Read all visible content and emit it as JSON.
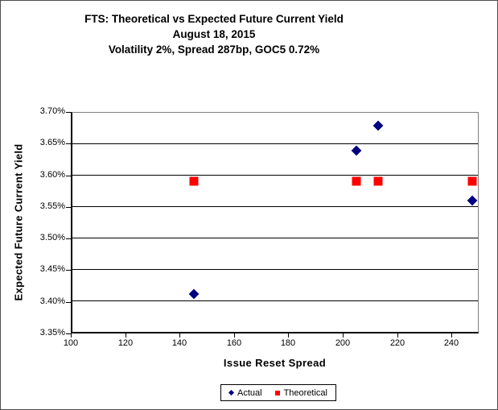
{
  "title": {
    "line1": "FTS: Theoretical vs Expected Future Current Yield",
    "line2": "August 18, 2015",
    "line3": "Volatility 2%, Spread 287bp, GOC5 0.72%"
  },
  "colors": {
    "actual": "#000080",
    "theoretical": "#ff0000",
    "gridline": "#000000",
    "plot_border": "#808080",
    "axis": "#000000",
    "background": "#ffffff"
  },
  "chart_data": {
    "type": "scatter",
    "title": "FTS: Theoretical vs Expected Future Current Yield",
    "subtitle": "August 18, 2015",
    "subtitle2": "Volatility 2%, Spread 287bp, GOC5 0.72%",
    "xlabel": "Issue Reset Spread",
    "ylabel": "Expected Future Current Yield",
    "xlim": [
      100,
      250
    ],
    "ylim": [
      3.35,
      3.7
    ],
    "xticks": [
      100,
      120,
      140,
      160,
      180,
      200,
      220,
      240
    ],
    "yticks": [
      3.35,
      3.4,
      3.45,
      3.5,
      3.55,
      3.6,
      3.65,
      3.7
    ],
    "ytick_suffix": "%",
    "grid": "horizontal",
    "legend_position": "bottom",
    "series": [
      {
        "name": "Actual",
        "marker": "diamond",
        "color": "#000080",
        "points": [
          [
            145,
            3.41
          ],
          [
            205,
            3.64
          ],
          [
            213,
            3.68
          ],
          [
            248,
            3.56
          ]
        ]
      },
      {
        "name": "Theoretical",
        "marker": "square",
        "color": "#ff0000",
        "points": [
          [
            145,
            3.59
          ],
          [
            205,
            3.59
          ],
          [
            213,
            3.59
          ],
          [
            248,
            3.59
          ]
        ]
      }
    ]
  }
}
